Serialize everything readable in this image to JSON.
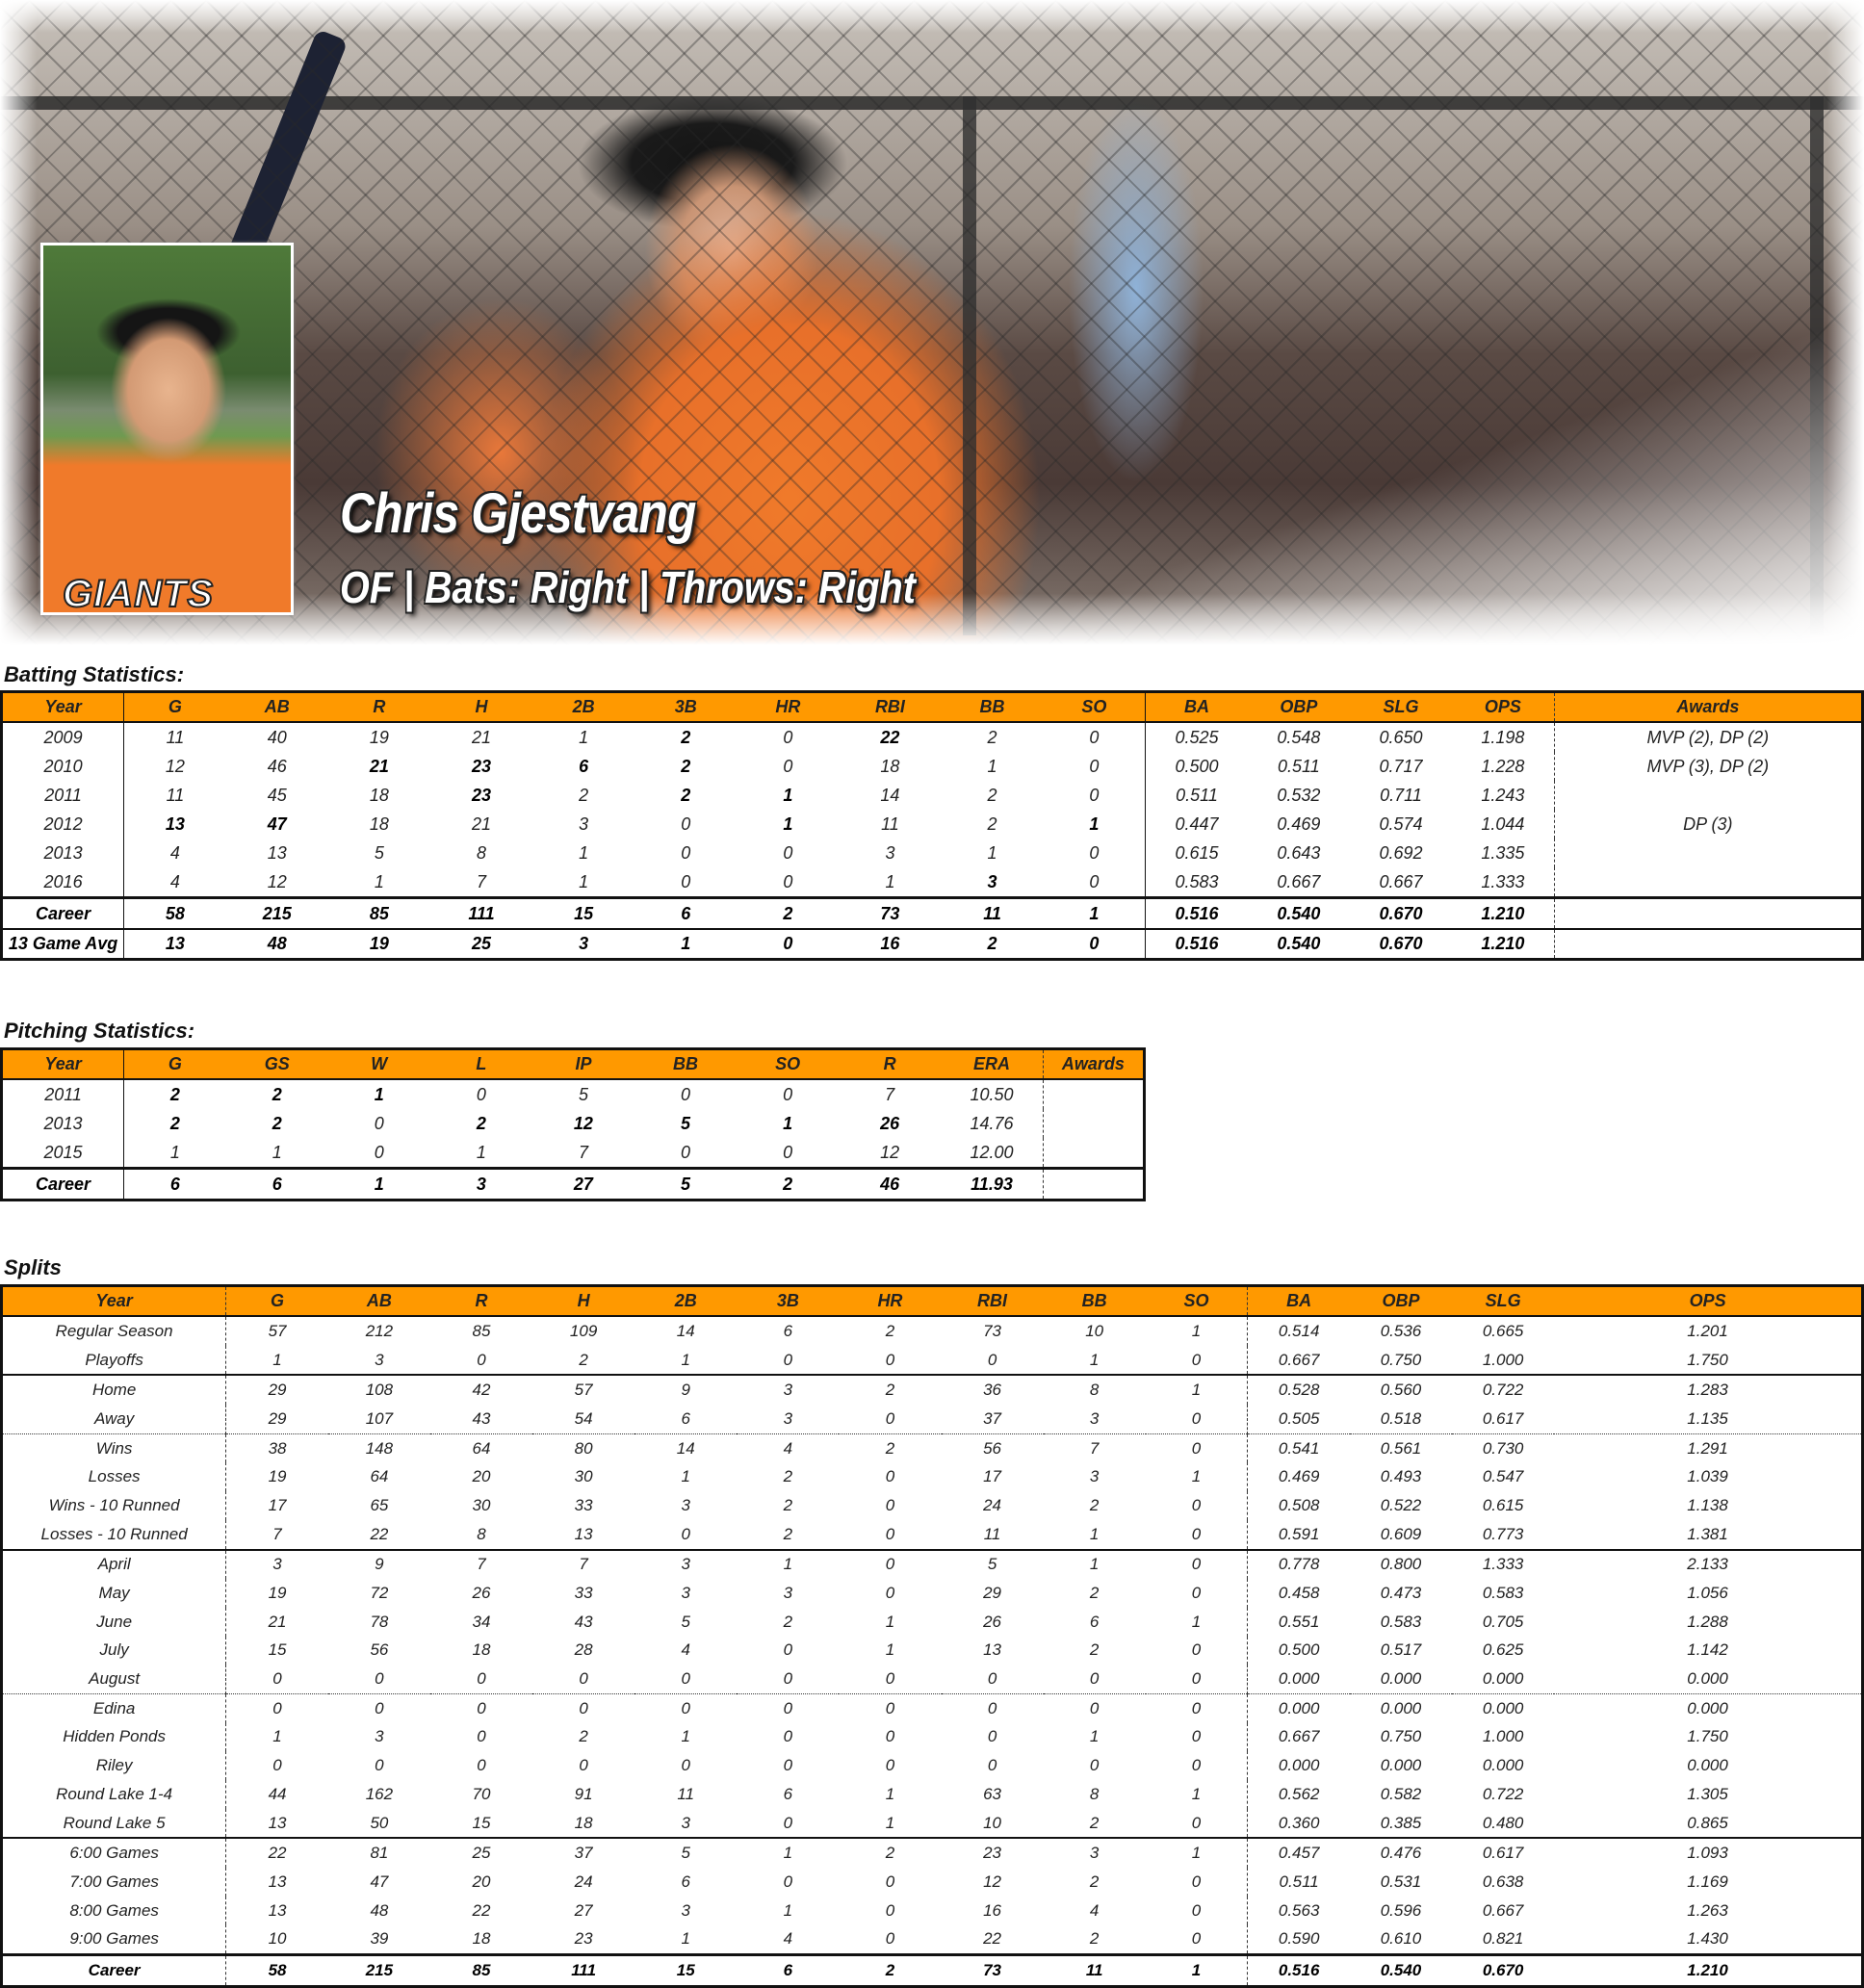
{
  "player": {
    "name": "Chris Gjestvang",
    "subtitle": "OF | Bats: Right | Throws: Right",
    "inset_shirt_text": "GIANTS",
    "accent_color": "#ff9900"
  },
  "batting": {
    "title": "Batting Statistics:",
    "columns": [
      "Year",
      "G",
      "AB",
      "R",
      "H",
      "2B",
      "3B",
      "HR",
      "RBI",
      "BB",
      "SO",
      "BA",
      "OBP",
      "SLG",
      "OPS",
      "Awards"
    ],
    "rows": [
      {
        "cells": [
          "2009",
          "11",
          "40",
          "19",
          "21",
          "1",
          "2",
          "0",
          "22",
          "2",
          "0",
          "0.525",
          "0.548",
          "0.650",
          "1.198",
          "MVP (2), DP (2)"
        ],
        "bold": [
          6,
          8
        ]
      },
      {
        "cells": [
          "2010",
          "12",
          "46",
          "21",
          "23",
          "6",
          "2",
          "0",
          "18",
          "1",
          "0",
          "0.500",
          "0.511",
          "0.717",
          "1.228",
          "MVP (3), DP (2)"
        ],
        "bold": [
          3,
          4,
          5,
          6
        ]
      },
      {
        "cells": [
          "2011",
          "11",
          "45",
          "18",
          "23",
          "2",
          "2",
          "1",
          "14",
          "2",
          "0",
          "0.511",
          "0.532",
          "0.711",
          "1.243",
          ""
        ],
        "bold": [
          4,
          6,
          7
        ]
      },
      {
        "cells": [
          "2012",
          "13",
          "47",
          "18",
          "21",
          "3",
          "0",
          "1",
          "11",
          "2",
          "1",
          "0.447",
          "0.469",
          "0.574",
          "1.044",
          "DP (3)"
        ],
        "bold": [
          1,
          2,
          7,
          10
        ]
      },
      {
        "cells": [
          "2013",
          "4",
          "13",
          "5",
          "8",
          "1",
          "0",
          "0",
          "3",
          "1",
          "0",
          "0.615",
          "0.643",
          "0.692",
          "1.335",
          ""
        ],
        "bold": []
      },
      {
        "cells": [
          "2016",
          "4",
          "12",
          "1",
          "7",
          "1",
          "0",
          "0",
          "1",
          "3",
          "0",
          "0.583",
          "0.667",
          "0.667",
          "1.333",
          ""
        ],
        "bold": [
          9
        ]
      }
    ],
    "career": [
      "Career",
      "58",
      "215",
      "85",
      "111",
      "15",
      "6",
      "2",
      "73",
      "11",
      "1",
      "0.516",
      "0.540",
      "0.670",
      "1.210",
      ""
    ],
    "avg": [
      "13 Game Avg",
      "13",
      "48",
      "19",
      "25",
      "3",
      "1",
      "0",
      "16",
      "2",
      "0",
      "0.516",
      "0.540",
      "0.670",
      "1.210",
      ""
    ]
  },
  "pitching": {
    "title": "Pitching Statistics:",
    "columns": [
      "Year",
      "G",
      "GS",
      "W",
      "L",
      "IP",
      "BB",
      "SO",
      "R",
      "ERA",
      "Awards"
    ],
    "rows": [
      {
        "cells": [
          "2011",
          "2",
          "2",
          "1",
          "0",
          "5",
          "0",
          "0",
          "7",
          "10.50",
          ""
        ],
        "bold": [
          1,
          2,
          3
        ]
      },
      {
        "cells": [
          "2013",
          "2",
          "2",
          "0",
          "2",
          "12",
          "5",
          "1",
          "26",
          "14.76",
          ""
        ],
        "bold": [
          1,
          2,
          4,
          5,
          6,
          7,
          8
        ]
      },
      {
        "cells": [
          "2015",
          "1",
          "1",
          "0",
          "1",
          "7",
          "0",
          "0",
          "12",
          "12.00",
          ""
        ],
        "bold": []
      }
    ],
    "career": [
      "Career",
      "6",
      "6",
      "1",
      "3",
      "27",
      "5",
      "2",
      "46",
      "11.93",
      ""
    ]
  },
  "splits": {
    "title": "Splits",
    "columns": [
      "Year",
      "G",
      "AB",
      "R",
      "H",
      "2B",
      "3B",
      "HR",
      "RBI",
      "BB",
      "SO",
      "BA",
      "OBP",
      "SLG",
      "OPS"
    ],
    "groups": [
      [
        [
          "Regular Season",
          "57",
          "212",
          "85",
          "109",
          "14",
          "6",
          "2",
          "73",
          "10",
          "1",
          "0.514",
          "0.536",
          "0.665",
          "1.201"
        ],
        [
          "Playoffs",
          "1",
          "3",
          "0",
          "2",
          "1",
          "0",
          "0",
          "0",
          "1",
          "0",
          "0.667",
          "0.750",
          "1.000",
          "1.750"
        ]
      ],
      [
        [
          "Home",
          "29",
          "108",
          "42",
          "57",
          "9",
          "3",
          "2",
          "36",
          "8",
          "1",
          "0.528",
          "0.560",
          "0.722",
          "1.283"
        ],
        [
          "Away",
          "29",
          "107",
          "43",
          "54",
          "6",
          "3",
          "0",
          "37",
          "3",
          "0",
          "0.505",
          "0.518",
          "0.617",
          "1.135"
        ]
      ],
      [
        [
          "Wins",
          "38",
          "148",
          "64",
          "80",
          "14",
          "4",
          "2",
          "56",
          "7",
          "0",
          "0.541",
          "0.561",
          "0.730",
          "1.291"
        ],
        [
          "Losses",
          "19",
          "64",
          "20",
          "30",
          "1",
          "2",
          "0",
          "17",
          "3",
          "1",
          "0.469",
          "0.493",
          "0.547",
          "1.039"
        ],
        [
          "Wins - 10 Runned",
          "17",
          "65",
          "30",
          "33",
          "3",
          "2",
          "0",
          "24",
          "2",
          "0",
          "0.508",
          "0.522",
          "0.615",
          "1.138"
        ],
        [
          "Losses - 10 Runned",
          "7",
          "22",
          "8",
          "13",
          "0",
          "2",
          "0",
          "11",
          "1",
          "0",
          "0.591",
          "0.609",
          "0.773",
          "1.381"
        ]
      ],
      [
        [
          "April",
          "3",
          "9",
          "7",
          "7",
          "3",
          "1",
          "0",
          "5",
          "1",
          "0",
          "0.778",
          "0.800",
          "1.333",
          "2.133"
        ],
        [
          "May",
          "19",
          "72",
          "26",
          "33",
          "3",
          "3",
          "0",
          "29",
          "2",
          "0",
          "0.458",
          "0.473",
          "0.583",
          "1.056"
        ],
        [
          "June",
          "21",
          "78",
          "34",
          "43",
          "5",
          "2",
          "1",
          "26",
          "6",
          "1",
          "0.551",
          "0.583",
          "0.705",
          "1.288"
        ],
        [
          "July",
          "15",
          "56",
          "18",
          "28",
          "4",
          "0",
          "1",
          "13",
          "2",
          "0",
          "0.500",
          "0.517",
          "0.625",
          "1.142"
        ],
        [
          "August",
          "0",
          "0",
          "0",
          "0",
          "0",
          "0",
          "0",
          "0",
          "0",
          "0",
          "0.000",
          "0.000",
          "0.000",
          "0.000"
        ]
      ],
      [
        [
          "Edina",
          "0",
          "0",
          "0",
          "0",
          "0",
          "0",
          "0",
          "0",
          "0",
          "0",
          "0.000",
          "0.000",
          "0.000",
          "0.000"
        ],
        [
          "Hidden Ponds",
          "1",
          "3",
          "0",
          "2",
          "1",
          "0",
          "0",
          "0",
          "1",
          "0",
          "0.667",
          "0.750",
          "1.000",
          "1.750"
        ],
        [
          "Riley",
          "0",
          "0",
          "0",
          "0",
          "0",
          "0",
          "0",
          "0",
          "0",
          "0",
          "0.000",
          "0.000",
          "0.000",
          "0.000"
        ],
        [
          "Round Lake 1-4",
          "44",
          "162",
          "70",
          "91",
          "11",
          "6",
          "1",
          "63",
          "8",
          "1",
          "0.562",
          "0.582",
          "0.722",
          "1.305"
        ],
        [
          "Round Lake 5",
          "13",
          "50",
          "15",
          "18",
          "3",
          "0",
          "1",
          "10",
          "2",
          "0",
          "0.360",
          "0.385",
          "0.480",
          "0.865"
        ]
      ],
      [
        [
          "6:00 Games",
          "22",
          "81",
          "25",
          "37",
          "5",
          "1",
          "2",
          "23",
          "3",
          "1",
          "0.457",
          "0.476",
          "0.617",
          "1.093"
        ],
        [
          "7:00 Games",
          "13",
          "47",
          "20",
          "24",
          "6",
          "0",
          "0",
          "12",
          "2",
          "0",
          "0.511",
          "0.531",
          "0.638",
          "1.169"
        ],
        [
          "8:00 Games",
          "13",
          "48",
          "22",
          "27",
          "3",
          "1",
          "0",
          "16",
          "4",
          "0",
          "0.563",
          "0.596",
          "0.667",
          "1.263"
        ],
        [
          "9:00 Games",
          "10",
          "39",
          "18",
          "23",
          "1",
          "4",
          "0",
          "22",
          "2",
          "0",
          "0.590",
          "0.610",
          "0.821",
          "1.430"
        ]
      ]
    ],
    "career": [
      "Career",
      "58",
      "215",
      "85",
      "111",
      "15",
      "6",
      "2",
      "73",
      "11",
      "1",
      "0.516",
      "0.540",
      "0.670",
      "1.210"
    ]
  }
}
